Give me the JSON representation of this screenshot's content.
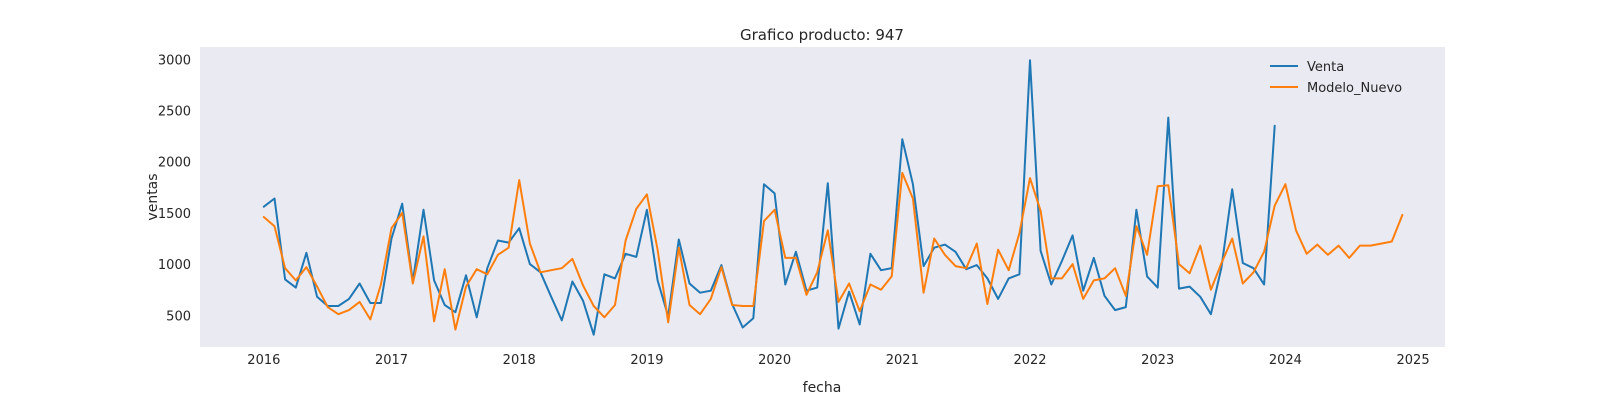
{
  "chart_data": {
    "type": "line",
    "title": "Grafico producto: 947",
    "xlabel": "fecha",
    "ylabel": "ventas",
    "x_ticks": [
      "2016",
      "2017",
      "2018",
      "2019",
      "2020",
      "2021",
      "2022",
      "2023",
      "2024",
      "2025"
    ],
    "y_ticks": [
      "500",
      "1000",
      "1500",
      "2000",
      "2500",
      "3000"
    ],
    "xlim": [
      "2015-07",
      "2025-04"
    ],
    "ylim": [
      190,
      3120
    ],
    "grid": false,
    "legend_position": "top-right",
    "colors": {
      "background": "#eaeaf2",
      "text": "#262626"
    },
    "series": [
      {
        "name": "Venta",
        "color": "#1f77b4",
        "x": [
          "2016-01",
          "2016-02",
          "2016-03",
          "2016-04",
          "2016-05",
          "2016-06",
          "2016-07",
          "2016-08",
          "2016-09",
          "2016-10",
          "2016-11",
          "2016-12",
          "2017-01",
          "2017-02",
          "2017-03",
          "2017-04",
          "2017-05",
          "2017-06",
          "2017-07",
          "2017-08",
          "2017-09",
          "2017-10",
          "2017-11",
          "2017-12",
          "2018-01",
          "2018-02",
          "2018-03",
          "2018-04",
          "2018-05",
          "2018-06",
          "2018-07",
          "2018-08",
          "2018-09",
          "2018-10",
          "2018-11",
          "2018-12",
          "2019-01",
          "2019-02",
          "2019-03",
          "2019-04",
          "2019-05",
          "2019-06",
          "2019-07",
          "2019-08",
          "2019-09",
          "2019-10",
          "2019-11",
          "2019-12",
          "2020-01",
          "2020-02",
          "2020-03",
          "2020-04",
          "2020-05",
          "2020-06",
          "2020-07",
          "2020-08",
          "2020-09",
          "2020-10",
          "2020-11",
          "2020-12",
          "2021-01",
          "2021-02",
          "2021-03",
          "2021-04",
          "2021-05",
          "2021-06",
          "2021-07",
          "2021-08",
          "2021-09",
          "2021-10",
          "2021-11",
          "2021-12",
          "2022-01",
          "2022-02",
          "2022-03",
          "2022-04",
          "2022-05",
          "2022-06",
          "2022-07",
          "2022-08",
          "2022-09",
          "2022-10",
          "2022-11",
          "2022-12",
          "2023-01",
          "2023-02",
          "2023-03",
          "2023-04",
          "2023-05",
          "2023-06",
          "2023-07",
          "2023-08",
          "2023-09",
          "2023-10",
          "2023-11",
          "2023-12"
        ],
        "y": [
          1560,
          1640,
          850,
          770,
          1110,
          680,
          590,
          590,
          660,
          810,
          620,
          620,
          1250,
          1590,
          830,
          1530,
          840,
          600,
          530,
          890,
          480,
          960,
          1230,
          1210,
          1350,
          1000,
          920,
          680,
          450,
          830,
          640,
          310,
          900,
          860,
          1100,
          1070,
          1530,
          840,
          490,
          1240,
          810,
          720,
          740,
          990,
          610,
          380,
          470,
          1780,
          1690,
          800,
          1120,
          740,
          770,
          1790,
          370,
          730,
          410,
          1100,
          940,
          960,
          2220,
          1780,
          980,
          1160,
          1190,
          1120,
          950,
          990,
          860,
          660,
          860,
          900,
          2990,
          1130,
          800,
          1030,
          1280,
          740,
          1060,
          690,
          550,
          580,
          1530,
          880,
          770,
          2430,
          760,
          780,
          680,
          510,
          970,
          1730,
          1010,
          960,
          800,
          2350
        ]
      },
      {
        "name": "Modelo_Nuevo",
        "color": "#ff7f0e",
        "x": [
          "2016-01",
          "2016-02",
          "2016-03",
          "2016-04",
          "2016-05",
          "2016-06",
          "2016-07",
          "2016-08",
          "2016-09",
          "2016-10",
          "2016-11",
          "2016-12",
          "2017-01",
          "2017-02",
          "2017-03",
          "2017-04",
          "2017-05",
          "2017-06",
          "2017-07",
          "2017-08",
          "2017-09",
          "2017-10",
          "2017-11",
          "2017-12",
          "2018-01",
          "2018-02",
          "2018-03",
          "2018-04",
          "2018-05",
          "2018-06",
          "2018-07",
          "2018-08",
          "2018-09",
          "2018-10",
          "2018-11",
          "2018-12",
          "2019-01",
          "2019-02",
          "2019-03",
          "2019-04",
          "2019-05",
          "2019-06",
          "2019-07",
          "2019-08",
          "2019-09",
          "2019-10",
          "2019-11",
          "2019-12",
          "2020-01",
          "2020-02",
          "2020-03",
          "2020-04",
          "2020-05",
          "2020-06",
          "2020-07",
          "2020-08",
          "2020-09",
          "2020-10",
          "2020-11",
          "2020-12",
          "2021-01",
          "2021-02",
          "2021-03",
          "2021-04",
          "2021-05",
          "2021-06",
          "2021-07",
          "2021-08",
          "2021-09",
          "2021-10",
          "2021-11",
          "2021-12",
          "2022-01",
          "2022-02",
          "2022-03",
          "2022-04",
          "2022-05",
          "2022-06",
          "2022-07",
          "2022-08",
          "2022-09",
          "2022-10",
          "2022-11",
          "2022-12",
          "2023-01",
          "2023-02",
          "2023-03",
          "2023-04",
          "2023-05",
          "2023-06",
          "2023-07",
          "2023-08",
          "2023-09",
          "2023-10",
          "2023-11",
          "2023-12",
          "2024-01",
          "2024-02",
          "2024-03",
          "2024-04",
          "2024-05",
          "2024-06",
          "2024-07",
          "2024-08",
          "2024-09",
          "2024-10",
          "2024-11",
          "2024-12"
        ],
        "y": [
          1460,
          1370,
          960,
          840,
          970,
          780,
          580,
          510,
          550,
          630,
          460,
          800,
          1350,
          1500,
          810,
          1270,
          440,
          950,
          360,
          780,
          950,
          900,
          1090,
          1160,
          1820,
          1200,
          920,
          940,
          960,
          1050,
          790,
          590,
          480,
          600,
          1230,
          1540,
          1680,
          1140,
          430,
          1160,
          600,
          510,
          660,
          970,
          600,
          590,
          590,
          1420,
          1530,
          1060,
          1060,
          700,
          920,
          1330,
          630,
          810,
          540,
          800,
          750,
          880,
          1890,
          1640,
          720,
          1250,
          1090,
          980,
          960,
          1200,
          610,
          1140,
          940,
          1300,
          1840,
          1520,
          860,
          860,
          1000,
          660,
          840,
          860,
          960,
          690,
          1370,
          1090,
          1760,
          1770,
          1000,
          910,
          1180,
          750,
          1010,
          1250,
          810,
          920,
          1120,
          1570,
          1780,
          1330,
          1100,
          1190,
          1090,
          1180,
          1060,
          1180,
          1180,
          1200,
          1220,
          1480
        ]
      }
    ]
  }
}
